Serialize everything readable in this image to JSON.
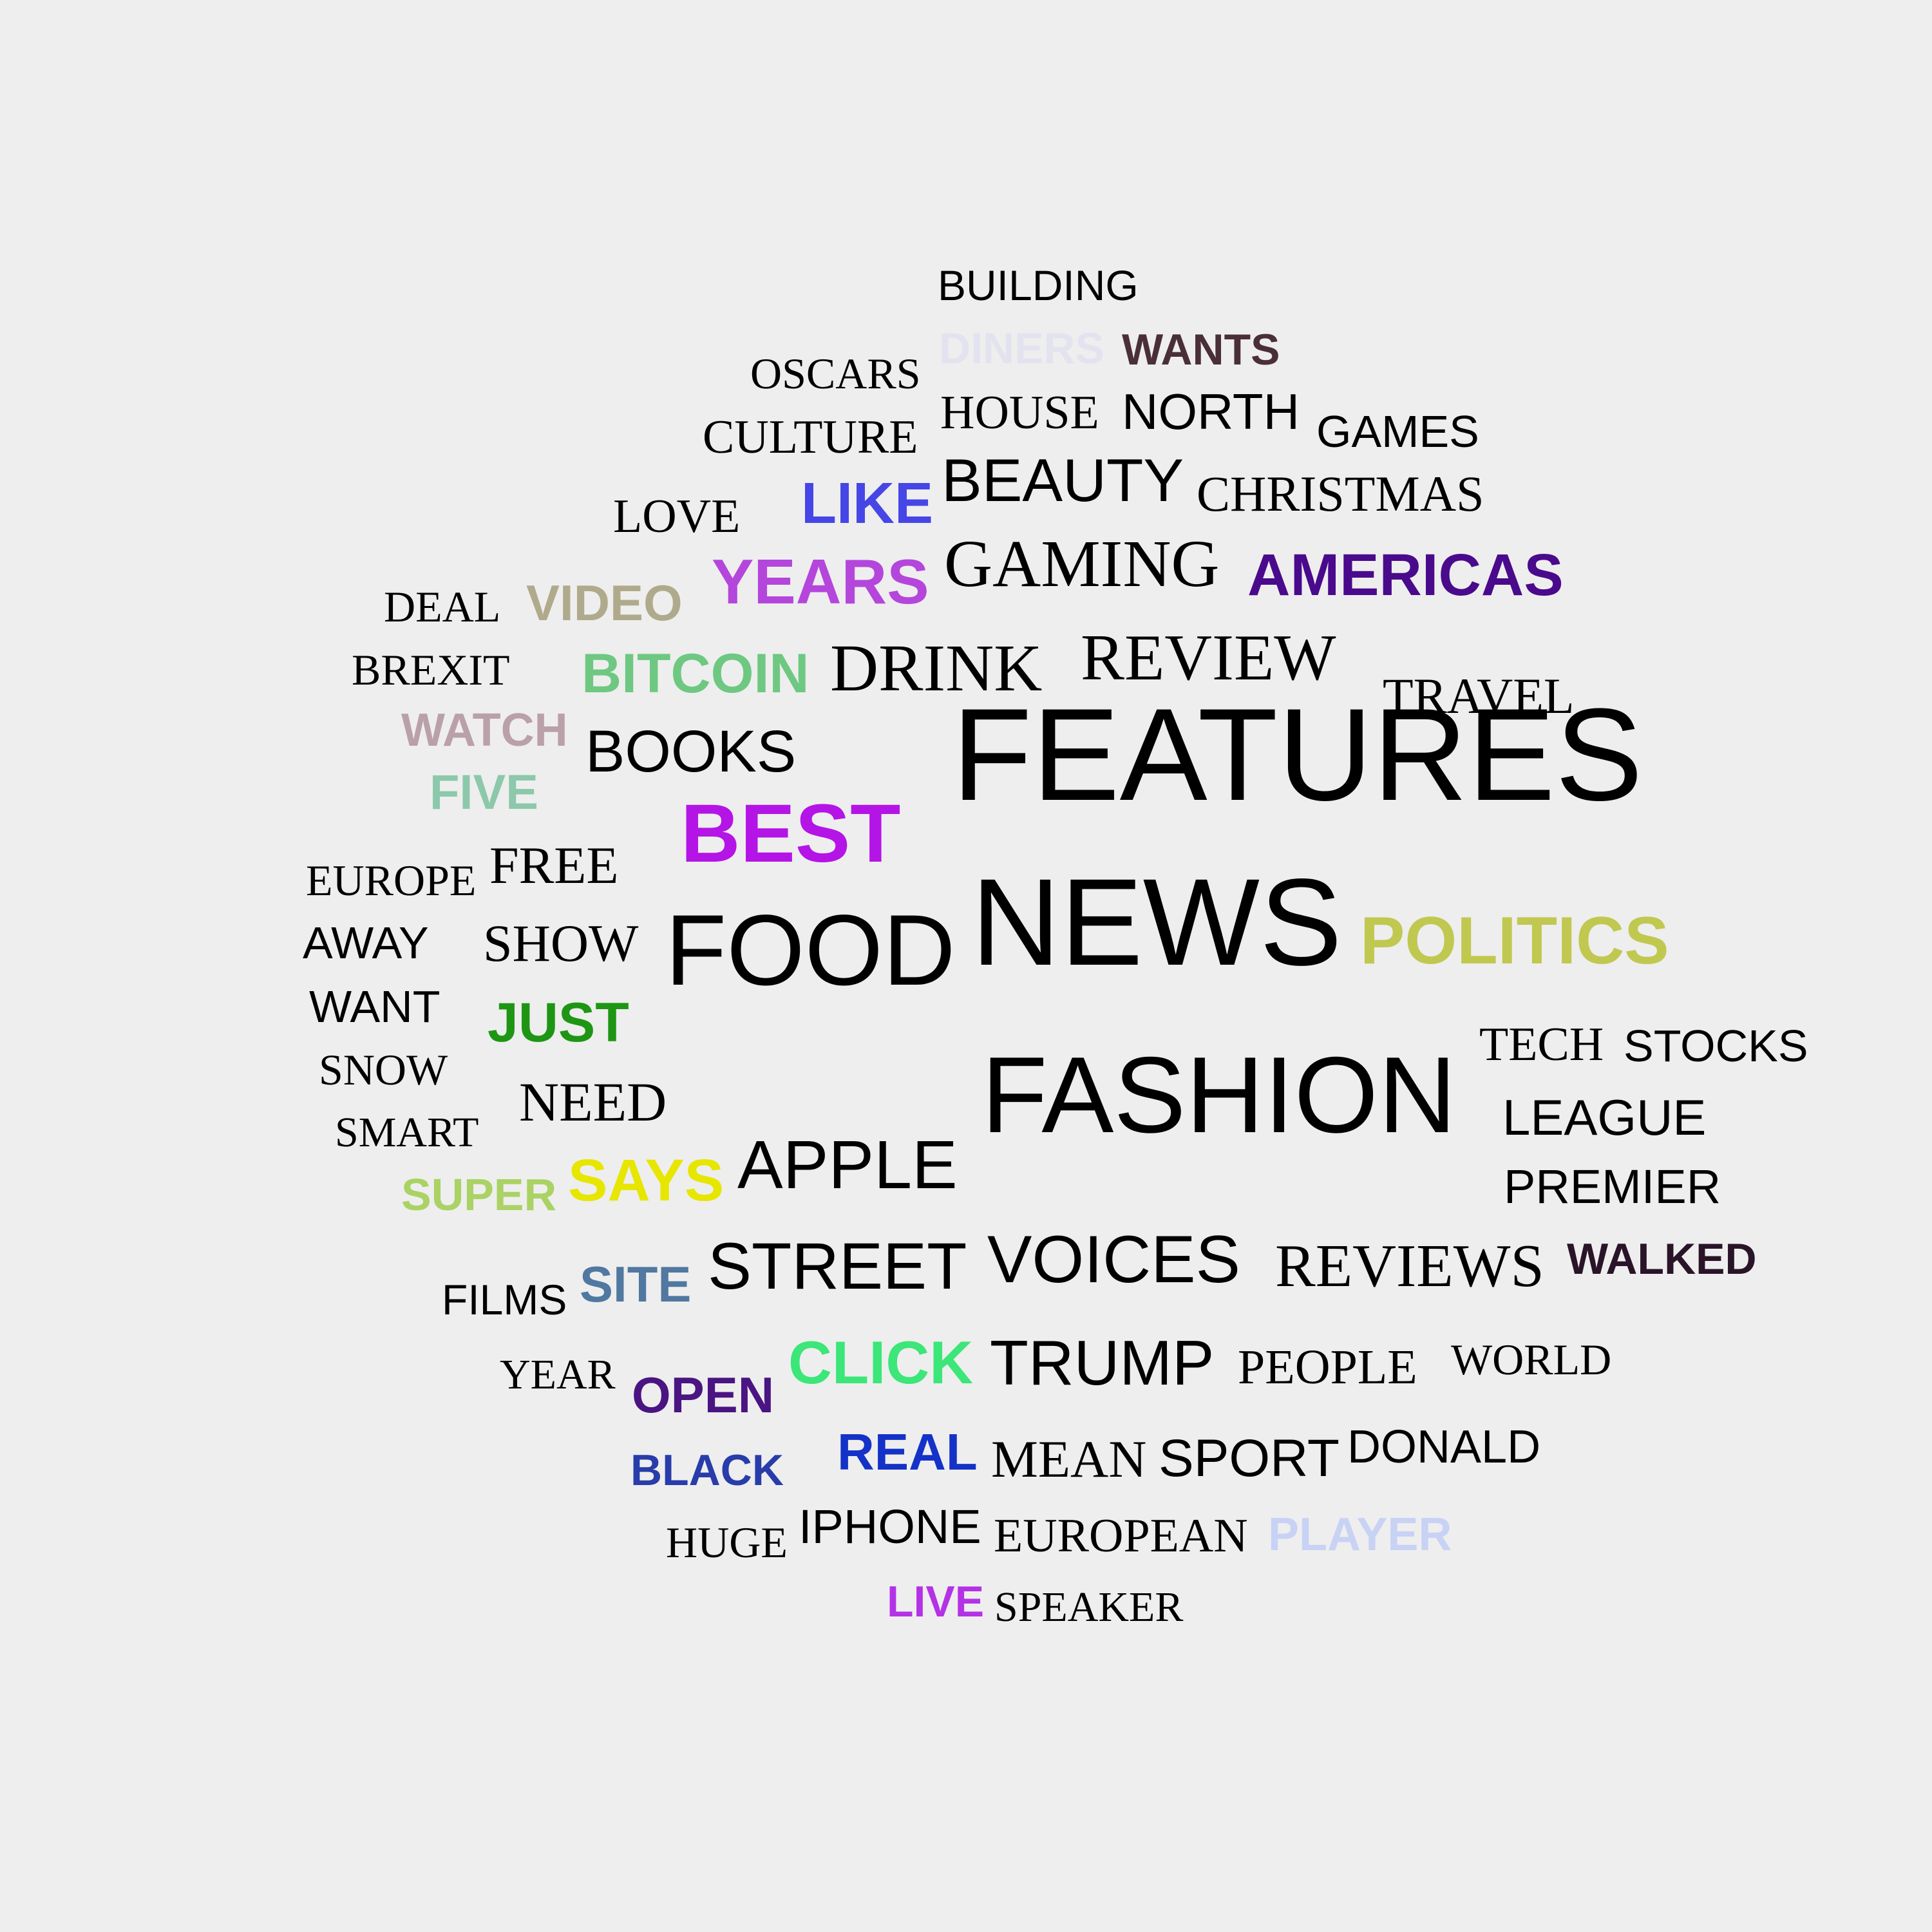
{
  "words": [
    {
      "text": "BUILDING",
      "color": "#000000"
    },
    {
      "text": "DINERS",
      "color": "#e3e3ef"
    },
    {
      "text": "WANTS",
      "color": "#4a2f38"
    },
    {
      "text": "OSCARS",
      "color": "#000000"
    },
    {
      "text": "HOUSE",
      "color": "#000000"
    },
    {
      "text": "NORTH",
      "color": "#000000"
    },
    {
      "text": "GAMES",
      "color": "#000000"
    },
    {
      "text": "CULTURE",
      "color": "#000000"
    },
    {
      "text": "BEAUTY",
      "color": "#000000"
    },
    {
      "text": "CHRISTMAS",
      "color": "#000000"
    },
    {
      "text": "LOVE",
      "color": "#000000"
    },
    {
      "text": "LIKE",
      "color": "#4646e6"
    },
    {
      "text": "GAMING",
      "color": "#000000"
    },
    {
      "text": "AMERICAS",
      "color": "#4a0a8c"
    },
    {
      "text": "YEARS",
      "color": "#b446dc"
    },
    {
      "text": "DEAL",
      "color": "#000000"
    },
    {
      "text": "VIDEO",
      "color": "#b0aa8c"
    },
    {
      "text": "BREXIT",
      "color": "#000000"
    },
    {
      "text": "BITCOIN",
      "color": "#6ec882"
    },
    {
      "text": "DRINK",
      "color": "#000000"
    },
    {
      "text": "REVIEW",
      "color": "#000000"
    },
    {
      "text": "TRAVEL",
      "color": "#000000"
    },
    {
      "text": "WATCH",
      "color": "#baa0a8"
    },
    {
      "text": "BOOKS",
      "color": "#000000"
    },
    {
      "text": "FEATURES",
      "color": "#000000"
    },
    {
      "text": "FIVE",
      "color": "#8cc8aa"
    },
    {
      "text": "BEST",
      "color": "#b414e6"
    },
    {
      "text": "EUROPE",
      "color": "#000000"
    },
    {
      "text": "FREE",
      "color": "#000000"
    },
    {
      "text": "NEWS",
      "color": "#000000"
    },
    {
      "text": "AWAY",
      "color": "#000000"
    },
    {
      "text": "SHOW",
      "color": "#000000"
    },
    {
      "text": "FOOD",
      "color": "#000000"
    },
    {
      "text": "POLITICS",
      "color": "#c0c850"
    },
    {
      "text": "WANT",
      "color": "#000000"
    },
    {
      "text": "JUST",
      "color": "#1e9614"
    },
    {
      "text": "TECH",
      "color": "#000000"
    },
    {
      "text": "STOCKS",
      "color": "#000000"
    },
    {
      "text": "SNOW",
      "color": "#000000"
    },
    {
      "text": "FASHION",
      "color": "#000000"
    },
    {
      "text": "NEED",
      "color": "#000000"
    },
    {
      "text": "LEAGUE",
      "color": "#000000"
    },
    {
      "text": "SMART",
      "color": "#000000"
    },
    {
      "text": "APPLE",
      "color": "#000000"
    },
    {
      "text": "SUPER",
      "color": "#aad264"
    },
    {
      "text": "SAYS",
      "color": "#e6e600"
    },
    {
      "text": "PREMIER",
      "color": "#000000"
    },
    {
      "text": "STREET",
      "color": "#000000"
    },
    {
      "text": "VOICES",
      "color": "#000000"
    },
    {
      "text": "REVIEWS",
      "color": "#000000"
    },
    {
      "text": "WALKED",
      "color": "#2a1428"
    },
    {
      "text": "FILMS",
      "color": "#000000"
    },
    {
      "text": "SITE",
      "color": "#5078a0"
    },
    {
      "text": "YEAR",
      "color": "#000000"
    },
    {
      "text": "OPEN",
      "color": "#4a1482"
    },
    {
      "text": "CLICK",
      "color": "#3ce678"
    },
    {
      "text": "TRUMP",
      "color": "#000000"
    },
    {
      "text": "PEOPLE",
      "color": "#000000"
    },
    {
      "text": "WORLD",
      "color": "#000000"
    },
    {
      "text": "BLACK",
      "color": "#283caa"
    },
    {
      "text": "REAL",
      "color": "#1432c8"
    },
    {
      "text": "MEAN",
      "color": "#000000"
    },
    {
      "text": "SPORT",
      "color": "#000000"
    },
    {
      "text": "DONALD",
      "color": "#000000"
    },
    {
      "text": "HUGE",
      "color": "#000000"
    },
    {
      "text": "IPHONE",
      "color": "#000000"
    },
    {
      "text": "EUROPEAN",
      "color": "#000000"
    },
    {
      "text": "PLAYER",
      "color": "#c8d2f5"
    },
    {
      "text": "LIVE",
      "color": "#b432e6"
    },
    {
      "text": "SPEAKER",
      "color": "#000000"
    }
  ]
}
